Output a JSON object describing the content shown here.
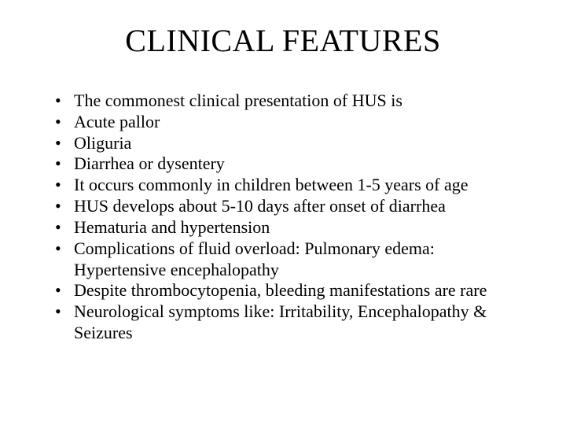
{
  "title": "CLINICAL FEATURES",
  "bullets": [
    "The commonest clinical presentation of HUS is",
    " Acute pallor",
    " Oliguria",
    " Diarrhea or dysentery",
    "It occurs commonly in children between 1-5 years of age",
    "HUS develops about 5-10 days after onset of diarrhea",
    "Hematuria and hypertension",
    " Complications of fluid overload: Pulmonary edema: Hypertensive encephalopathy",
    "Despite thrombocytopenia, bleeding manifestations are rare",
    "Neurological symptoms like: Irritability, Encephalopathy & Seizures"
  ],
  "style": {
    "background_color": "#ffffff",
    "text_color": "#000000",
    "title_fontsize": 40,
    "body_fontsize": 22,
    "font_family": "Times New Roman",
    "bullet_glyph": "•"
  }
}
